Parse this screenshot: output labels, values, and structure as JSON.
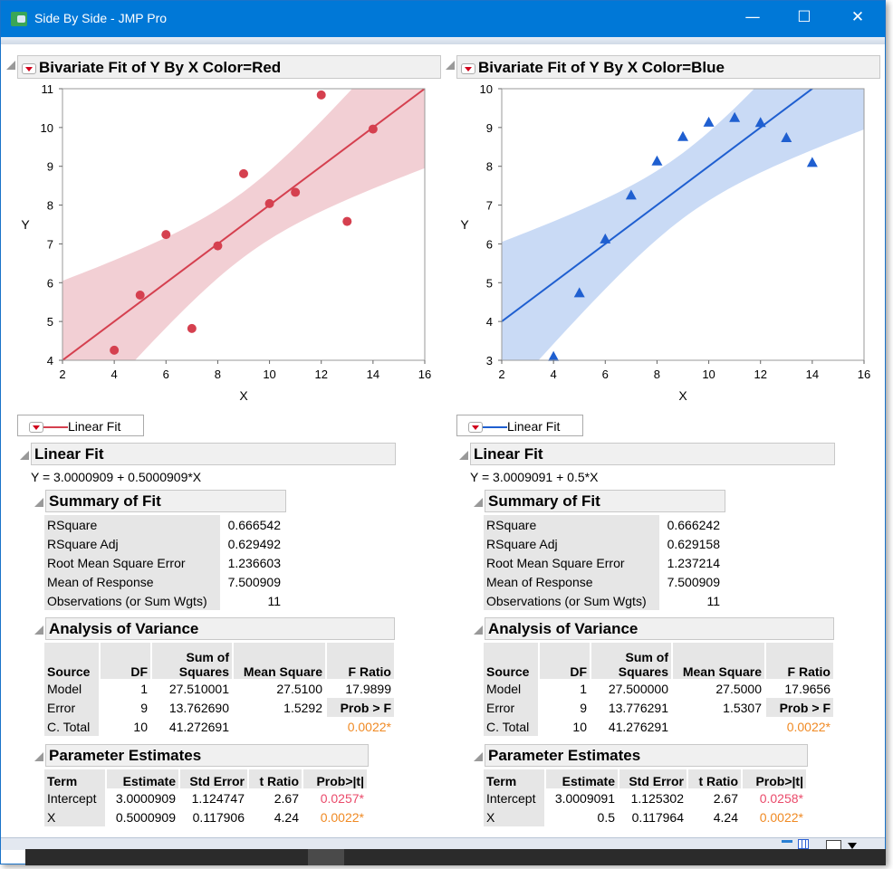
{
  "window": {
    "title": "Side By Side - JMP Pro",
    "minimize": "—",
    "maximize": "☐",
    "close": "✕"
  },
  "panels": [
    {
      "id": "red",
      "title": "Bivariate Fit of Y By X Color=Red",
      "color": "#d5404f",
      "band_color": "#f2cfd4",
      "marker": "circle",
      "legend_label": "Linear Fit",
      "fit_title": "Linear Fit",
      "equation": "Y = 3.0000909 + 0.5000909*X",
      "summary": {
        "title": "Summary of Fit",
        "rows": [
          [
            "RSquare",
            "0.666542"
          ],
          [
            "RSquare Adj",
            "0.629492"
          ],
          [
            "Root Mean Square Error",
            "1.236603"
          ],
          [
            "Mean of Response",
            "7.500909"
          ],
          [
            "Observations (or Sum Wgts)",
            "11"
          ]
        ]
      },
      "anova": {
        "title": "Analysis of Variance",
        "headers": [
          "Source",
          "DF",
          "Sum of Squares",
          "Mean Square",
          "F Ratio"
        ],
        "rows": [
          [
            "Model",
            "1",
            "27.510001",
            "27.5100",
            "17.9899"
          ],
          [
            "Error",
            "9",
            "13.762690",
            "1.5292",
            "Prob > F"
          ],
          [
            "C. Total",
            "10",
            "41.272691",
            "",
            "0.0022*"
          ]
        ]
      },
      "params": {
        "title": "Parameter Estimates",
        "headers": [
          "Term",
          "Estimate",
          "Std Error",
          "t Ratio",
          "Prob>|t|"
        ],
        "rows": [
          [
            "Intercept",
            "3.0000909",
            "1.124747",
            "2.67",
            "0.0257*"
          ],
          [
            "X",
            "0.5000909",
            "0.117906",
            "4.24",
            "0.0022*"
          ]
        ]
      },
      "chart_data": {
        "type": "scatter",
        "xlabel": "X",
        "ylabel": "Y",
        "xlim": [
          2,
          16
        ],
        "ylim": [
          4,
          11
        ],
        "xticks": [
          2,
          4,
          6,
          8,
          10,
          12,
          14,
          16
        ],
        "yticks": [
          4,
          5,
          6,
          7,
          8,
          9,
          10,
          11
        ],
        "x": [
          10,
          8,
          13,
          9,
          11,
          14,
          6,
          4,
          12,
          7,
          5
        ],
        "y": [
          8.04,
          6.95,
          7.58,
          8.81,
          8.33,
          9.96,
          7.24,
          4.26,
          10.84,
          4.82,
          5.68
        ],
        "fit": {
          "intercept": 3.0000909,
          "slope": 0.5000909,
          "rmse": 1.236603,
          "confidence_band": true
        }
      }
    },
    {
      "id": "blue",
      "title": "Bivariate Fit of Y By X Color=Blue",
      "color": "#1f5fd0",
      "band_color": "#c9daf5",
      "marker": "triangle",
      "legend_label": "Linear Fit",
      "fit_title": "Linear Fit",
      "equation": "Y = 3.0009091 + 0.5*X",
      "summary": {
        "title": "Summary of Fit",
        "rows": [
          [
            "RSquare",
            "0.666242"
          ],
          [
            "RSquare Adj",
            "0.629158"
          ],
          [
            "Root Mean Square Error",
            "1.237214"
          ],
          [
            "Mean of Response",
            "7.500909"
          ],
          [
            "Observations (or Sum Wgts)",
            "11"
          ]
        ]
      },
      "anova": {
        "title": "Analysis of Variance",
        "headers": [
          "Source",
          "DF",
          "Sum of Squares",
          "Mean Square",
          "F Ratio"
        ],
        "rows": [
          [
            "Model",
            "1",
            "27.500000",
            "27.5000",
            "17.9656"
          ],
          [
            "Error",
            "9",
            "13.776291",
            "1.5307",
            "Prob > F"
          ],
          [
            "C. Total",
            "10",
            "41.276291",
            "",
            "0.0022*"
          ]
        ]
      },
      "params": {
        "title": "Parameter Estimates",
        "headers": [
          "Term",
          "Estimate",
          "Std Error",
          "t Ratio",
          "Prob>|t|"
        ],
        "rows": [
          [
            "Intercept",
            "3.0009091",
            "1.125302",
            "2.67",
            "0.0258*"
          ],
          [
            "X",
            "0.5",
            "0.117964",
            "4.24",
            "0.0022*"
          ]
        ]
      },
      "chart_data": {
        "type": "scatter",
        "xlabel": "X",
        "ylabel": "Y",
        "xlim": [
          2,
          16
        ],
        "ylim": [
          3,
          10
        ],
        "xticks": [
          2,
          4,
          6,
          8,
          10,
          12,
          14,
          16
        ],
        "yticks": [
          3,
          4,
          5,
          6,
          7,
          8,
          9,
          10
        ],
        "x": [
          10,
          8,
          13,
          9,
          11,
          14,
          6,
          4,
          12,
          7,
          5
        ],
        "y": [
          9.14,
          8.14,
          8.74,
          8.77,
          9.26,
          8.1,
          6.13,
          3.1,
          9.13,
          7.26,
          4.74
        ],
        "fit": {
          "intercept": 3.0009091,
          "slope": 0.5,
          "rmse": 1.237214,
          "confidence_band": true
        }
      }
    }
  ]
}
